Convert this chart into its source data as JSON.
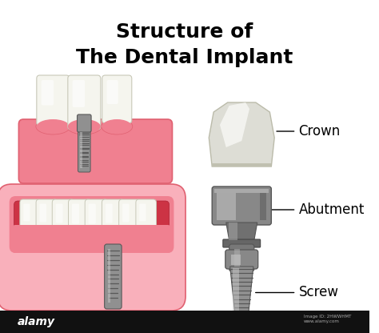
{
  "title_line1": "Structure of",
  "title_line2": "The Dental Implant",
  "title_fontsize": 18,
  "title_fontweight": "bold",
  "bg_color": "#ffffff",
  "gum_pink": "#F08090",
  "gum_light": "#F9B0BB",
  "gum_dark": "#E06070",
  "gum_inner": "#CC3344",
  "tooth_white": "#F5F5EE",
  "tooth_off": "#E8E8DC",
  "tooth_edge": "#C8C8B8",
  "screw_mid": "#909090",
  "screw_dark": "#585858",
  "screw_light": "#C8C8C8",
  "screw_lighter": "#E0E0E0",
  "crown_white": "#E8E8E0",
  "crown_light": "#F5F5F0",
  "crown_shadow": "#C0C0B0",
  "ab_top": "#888888",
  "ab_mid": "#707070",
  "ab_light": "#B0B0B0",
  "labels": [
    "Crown",
    "Abutment",
    "Screw"
  ],
  "label_fontsize": 12,
  "footer_bg": "#111111",
  "footer_text": "alamy",
  "footer_small": "Image ID: 2HWWHMT\nwww.alamy.com"
}
